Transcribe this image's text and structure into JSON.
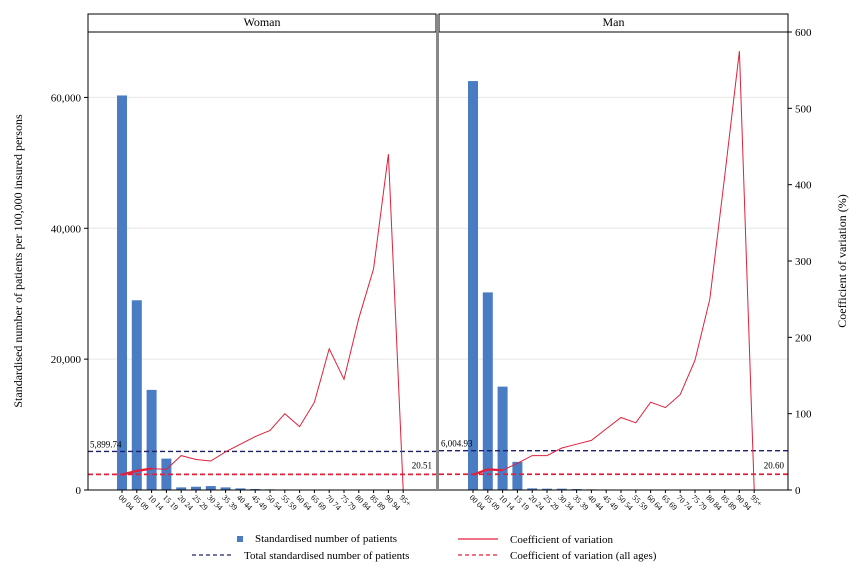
{
  "chart_data": {
    "type": "bar+line",
    "panels": [
      "Woman",
      "Man"
    ],
    "categories": [
      "00_04",
      "05_09",
      "10_14",
      "15_19",
      "20_24",
      "25_29",
      "30_34",
      "35_39",
      "40_44",
      "45_49",
      "50_54",
      "55_59",
      "60_64",
      "65_69",
      "70_74",
      "75_79",
      "80_84",
      "85_89",
      "90_94",
      "95+"
    ],
    "ylabel_left": "Standardised number of patients per 100,000 insured persons",
    "ylabel_right": "Coefficient of variation (%)",
    "ylim_left": [
      0,
      70000
    ],
    "ylim_right": [
      0,
      600
    ],
    "yticks_left": [
      0,
      20000,
      40000,
      60000
    ],
    "yticks_left_labels": [
      "0",
      "20,000",
      "40,000",
      "60,000"
    ],
    "yticks_right": [
      0,
      100,
      200,
      300,
      400,
      500,
      600
    ],
    "grid": true,
    "legend_position": "bottom",
    "series": [
      {
        "name": "Standardised number of patients",
        "kind": "bar",
        "color": "#4a7cc4",
        "values": {
          "Woman": [
            60300,
            29000,
            15300,
            4800,
            400,
            500,
            600,
            400,
            250,
            150,
            100,
            80,
            60,
            50,
            40,
            30,
            20,
            10,
            5,
            0
          ],
          "Man": [
            62500,
            30200,
            15800,
            4300,
            250,
            200,
            200,
            150,
            100,
            80,
            60,
            50,
            40,
            30,
            20,
            15,
            10,
            5,
            5,
            0
          ]
        }
      },
      {
        "name": "Coefficient of variation",
        "kind": "line",
        "axis": "right",
        "color": "#e0203c",
        "values": {
          "Woman": [
            20,
            25,
            28,
            27,
            45,
            40,
            38,
            50,
            60,
            70,
            78,
            100,
            83,
            115,
            185,
            145,
            225,
            290,
            440,
            0
          ],
          "Man": [
            20,
            27,
            26,
            35,
            45,
            45,
            55,
            60,
            65,
            80,
            95,
            88,
            115,
            108,
            125,
            170,
            250,
            410,
            575,
            0
          ]
        }
      },
      {
        "name": "Total standardised number of patients",
        "kind": "hline",
        "color": "#1f1f6e",
        "values": {
          "Woman": 5899.74,
          "Man": 6004.93
        },
        "labels": {
          "Woman": "5,899.74",
          "Man": "6,004.93"
        }
      },
      {
        "name": "Coefficient of variation (all ages)",
        "kind": "hline",
        "axis": "right",
        "color": "#e0203c",
        "values": {
          "Woman": 20.51,
          "Man": 20.6
        },
        "labels": {
          "Woman": "20.51",
          "Man": "20.60"
        }
      }
    ]
  }
}
